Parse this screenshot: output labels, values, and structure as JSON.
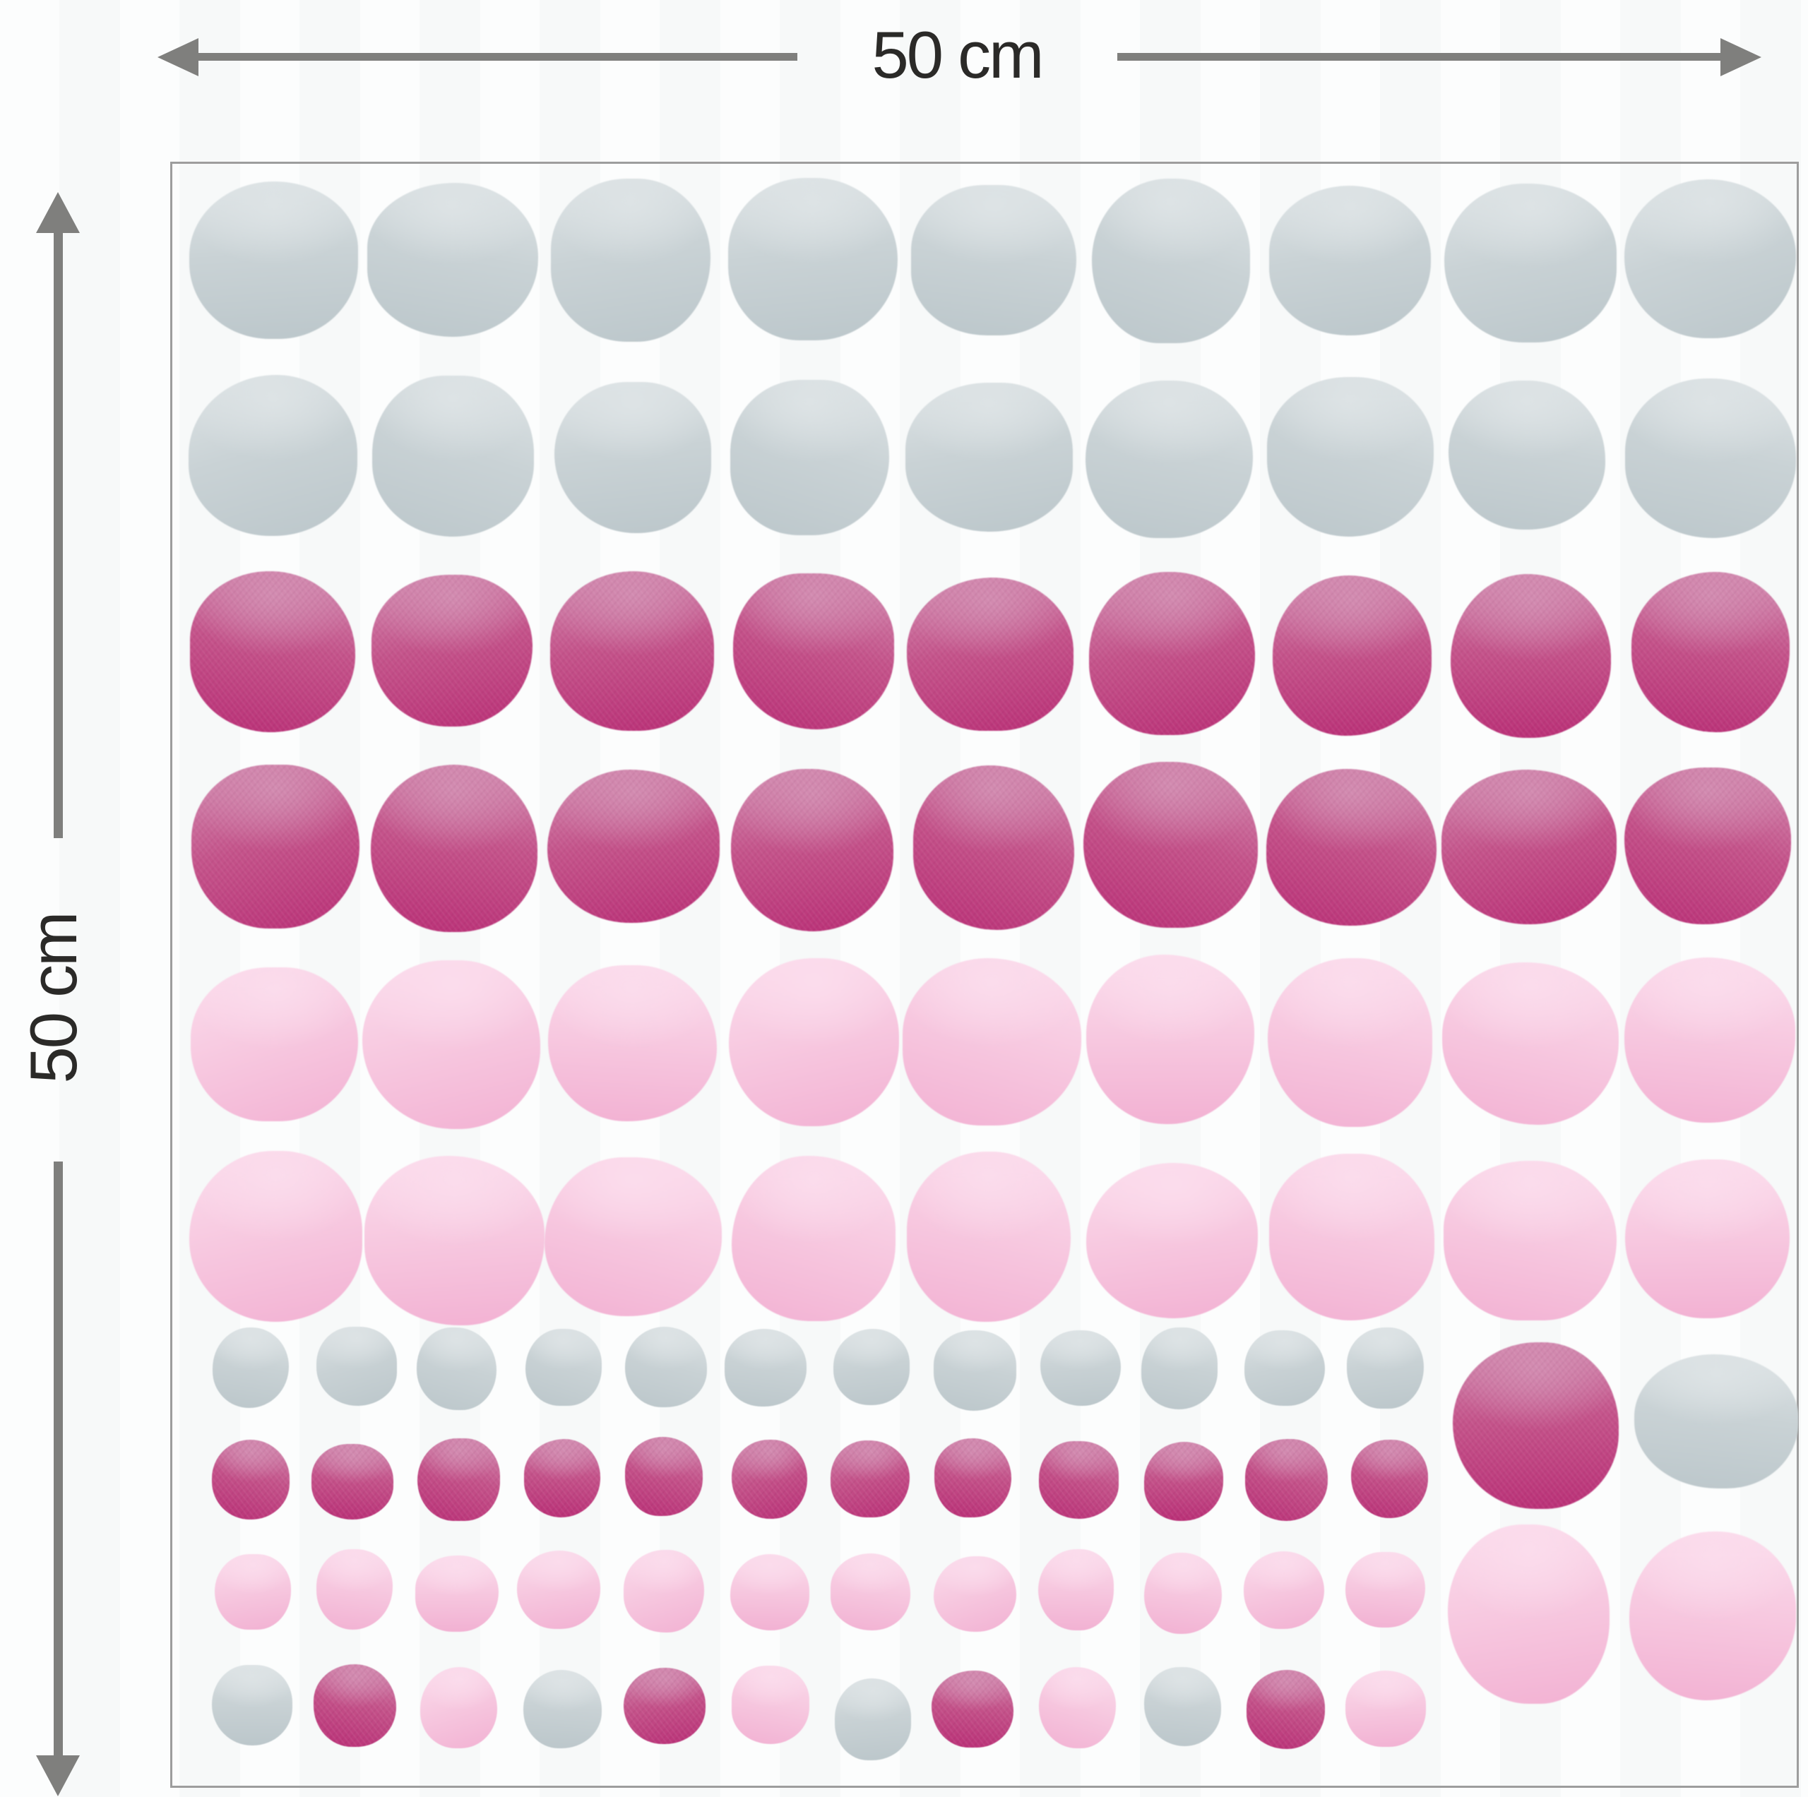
{
  "image_type": "wall-sticker-dimension-diagram",
  "dimensions": {
    "horizontal": {
      "label": "50 cm"
    },
    "vertical": {
      "label": "50 cm"
    }
  },
  "palette": {
    "background": "#fbfcfc",
    "background_stripe": "#f7f9f9",
    "arrow": "#7f7f7d",
    "label_text": "#2b2a28",
    "sheet_border": "#9d9d9d",
    "gray": {
      "light": "#dde3e5",
      "mid": "#c9d2d5",
      "deep": "#bcc7cb"
    },
    "dark_pink": {
      "light": "#d28bb0",
      "mid": "#c4538a",
      "deep": "#ba3177"
    },
    "light_pink": {
      "light": "#fbdcec",
      "mid": "#f7c9e0",
      "deep": "#f2b2d3"
    }
  },
  "sheet": {
    "large_grid": {
      "columns": 9,
      "rows": [
        {
          "color": "gray"
        },
        {
          "color": "gray"
        },
        {
          "color": "dark_pink"
        },
        {
          "color": "dark_pink"
        },
        {
          "color": "light_pink"
        },
        {
          "color": "light_pink"
        }
      ]
    },
    "small_grid": {
      "columns": 12,
      "rows": [
        {
          "color": "gray"
        },
        {
          "color": "dark_pink"
        },
        {
          "color": "light_pink"
        },
        {
          "color": "mixed",
          "pattern": [
            "gray",
            "dark_pink",
            "light_pink"
          ]
        }
      ]
    },
    "corner_circles": [
      {
        "color": "dark_pink"
      },
      {
        "color": "gray"
      },
      {
        "color": "light_pink"
      },
      {
        "color": "light_pink"
      }
    ]
  }
}
